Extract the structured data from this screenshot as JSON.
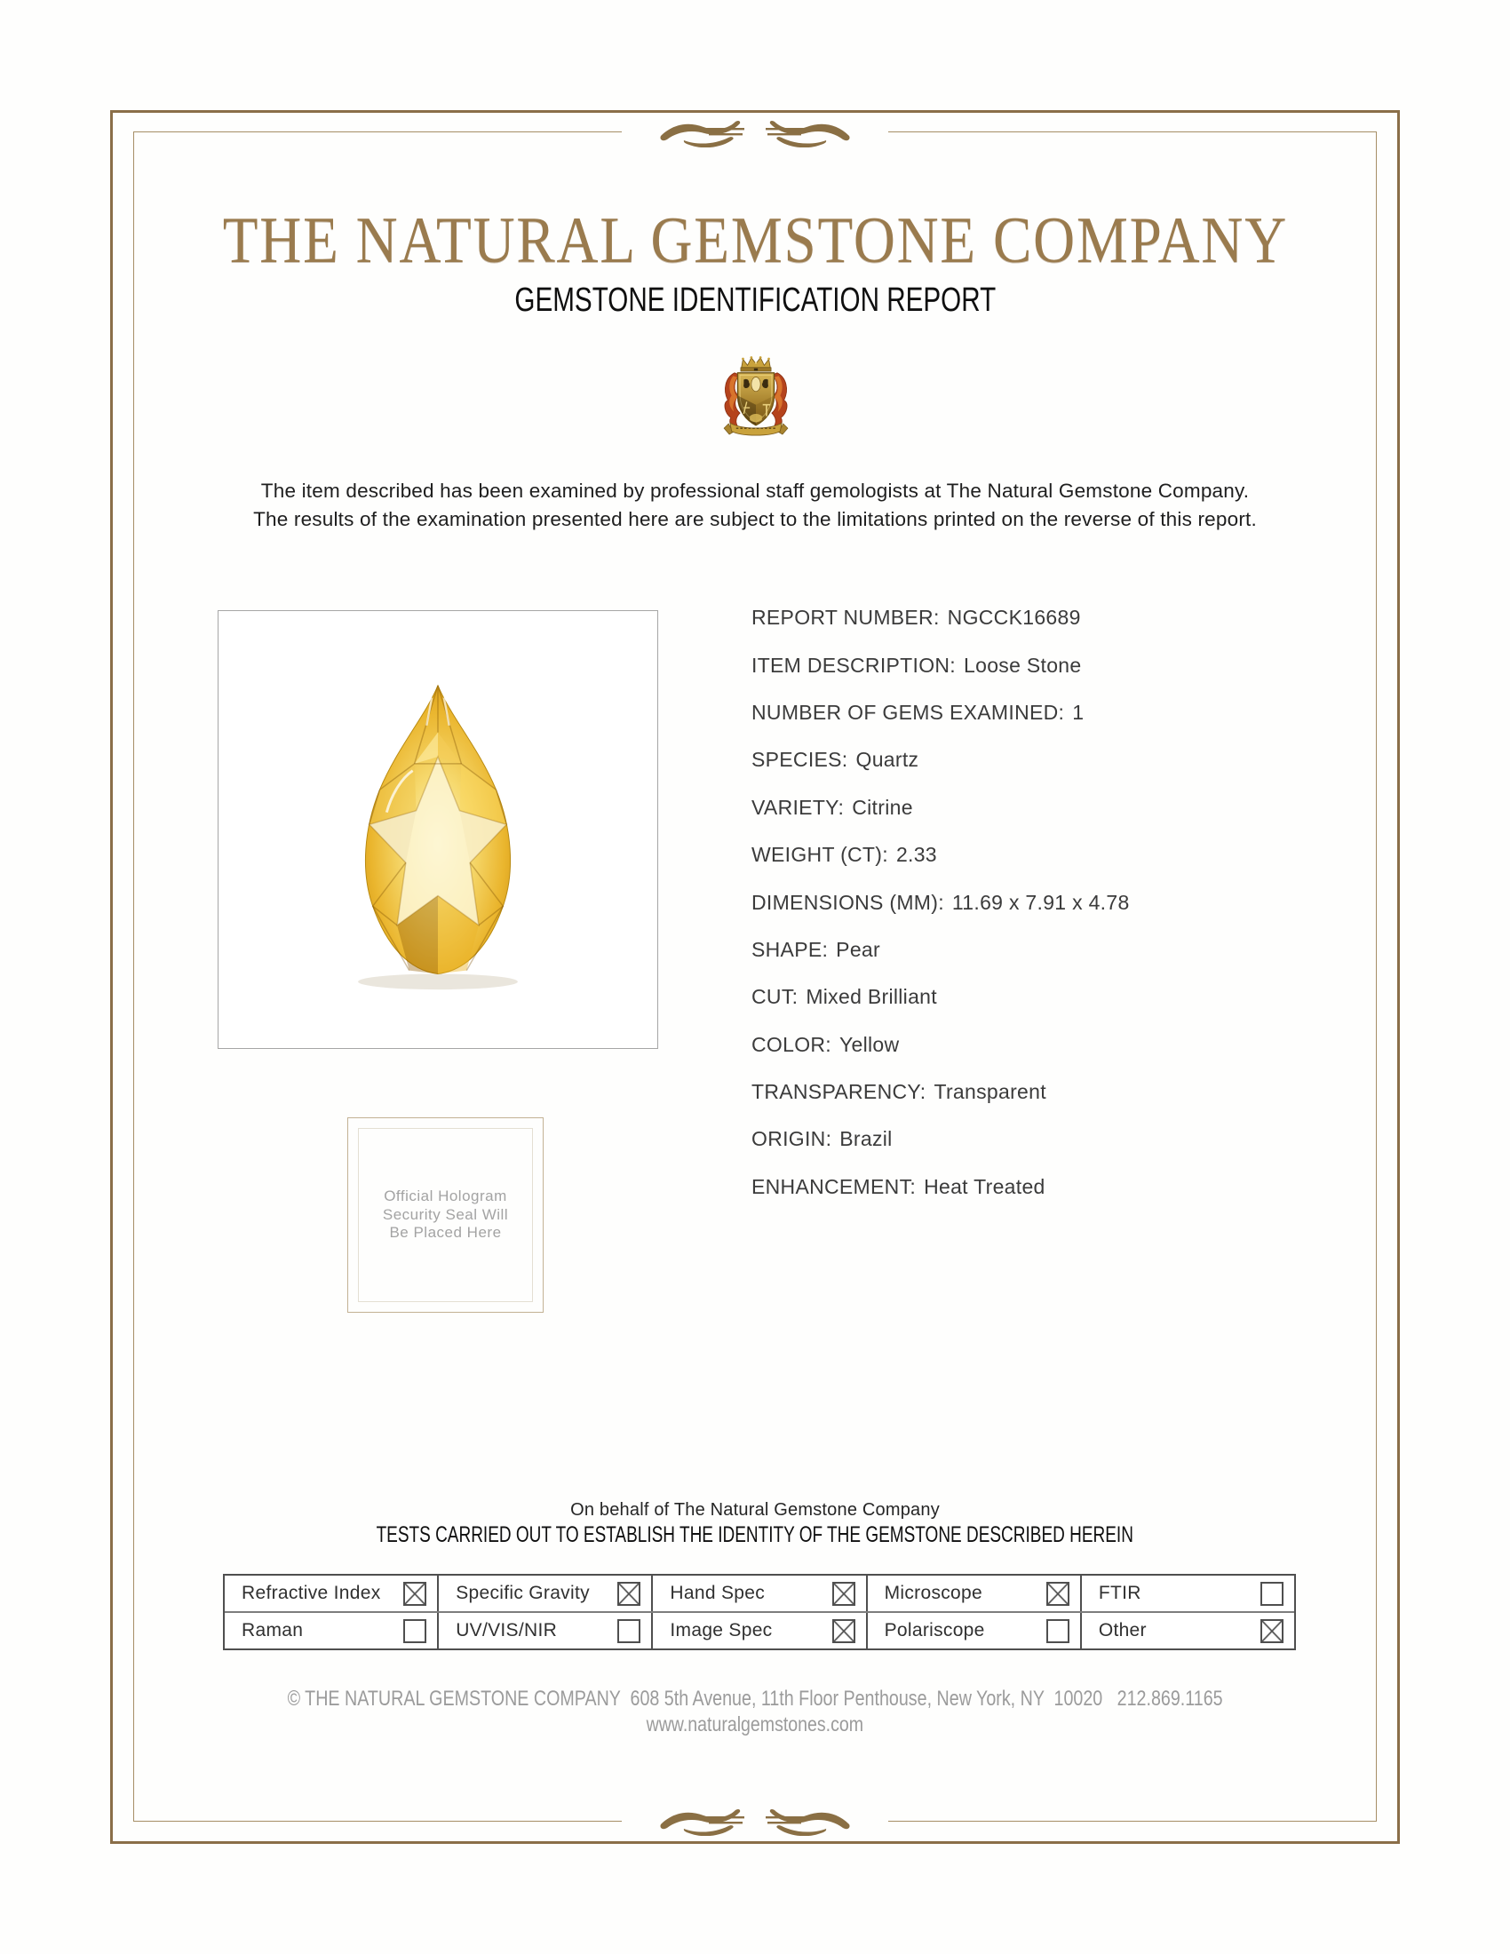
{
  "header": {
    "company_name": "THE NATURAL GEMSTONE COMPANY",
    "report_title": "GEMSTONE IDENTIFICATION REPORT"
  },
  "intro": "The item described has been examined by professional staff gemologists at The Natural Gemstone Company.\nThe results of the examination presented here are subject to the limitations printed on the reverse of this report.",
  "report": {
    "fields": [
      {
        "label": "REPORT NUMBER:",
        "value": "NGCCK16689"
      },
      {
        "label": "ITEM DESCRIPTION:",
        "value": "Loose Stone"
      },
      {
        "label": "NUMBER OF GEMS EXAMINED:",
        "value": "1"
      },
      {
        "label": "SPECIES:",
        "value": "Quartz"
      },
      {
        "label": "VARIETY:",
        "value": "Citrine"
      },
      {
        "label": "WEIGHT (CT):",
        "value": "2.33"
      },
      {
        "label": "DIMENSIONS (MM):",
        "value": "11.69 x 7.91 x 4.78"
      },
      {
        "label": "SHAPE:",
        "value": "Pear"
      },
      {
        "label": "CUT:",
        "value": "Mixed Brilliant"
      },
      {
        "label": "COLOR:",
        "value": "Yellow"
      },
      {
        "label": "TRANSPARENCY:",
        "value": "Transparent"
      },
      {
        "label": "ORIGIN:",
        "value": "Brazil"
      },
      {
        "label": "ENHANCEMENT:",
        "value": "Heat Treated"
      }
    ]
  },
  "hologram": {
    "text": "Official Hologram\nSecurity Seal Will\nBe Placed Here"
  },
  "attestation": {
    "on_behalf": "On behalf of The Natural Gemstone Company",
    "tests_title": "TESTS CARRIED OUT TO ESTABLISH THE IDENTITY OF THE GEMSTONE DESCRIBED HEREIN"
  },
  "tests": {
    "rows": [
      [
        {
          "label": "Refractive Index",
          "checked": true
        },
        {
          "label": "Specific Gravity",
          "checked": true
        },
        {
          "label": "Hand Spec",
          "checked": true
        },
        {
          "label": "Microscope",
          "checked": true
        },
        {
          "label": "FTIR",
          "checked": false
        }
      ],
      [
        {
          "label": "Raman",
          "checked": false
        },
        {
          "label": "UV/VIS/NIR",
          "checked": false
        },
        {
          "label": "Image Spec",
          "checked": true
        },
        {
          "label": "Polariscope",
          "checked": false
        },
        {
          "label": "Other",
          "checked": true
        }
      ]
    ]
  },
  "footer": {
    "line1": "© THE NATURAL GEMSTONE COMPANY  608 5th Avenue, 11th Floor Penthouse, New York, NY  10020   212.869.1165",
    "line2": "www.naturalgemstones.com"
  },
  "colors": {
    "accent_gold": "#9a7b4e",
    "border_brown": "#8a6e48",
    "citrine_yellow": "#eab52d",
    "mantling_red": "#b5431c",
    "text_dark": "#3b3b3b",
    "muted_gray": "#9b9b9b"
  }
}
